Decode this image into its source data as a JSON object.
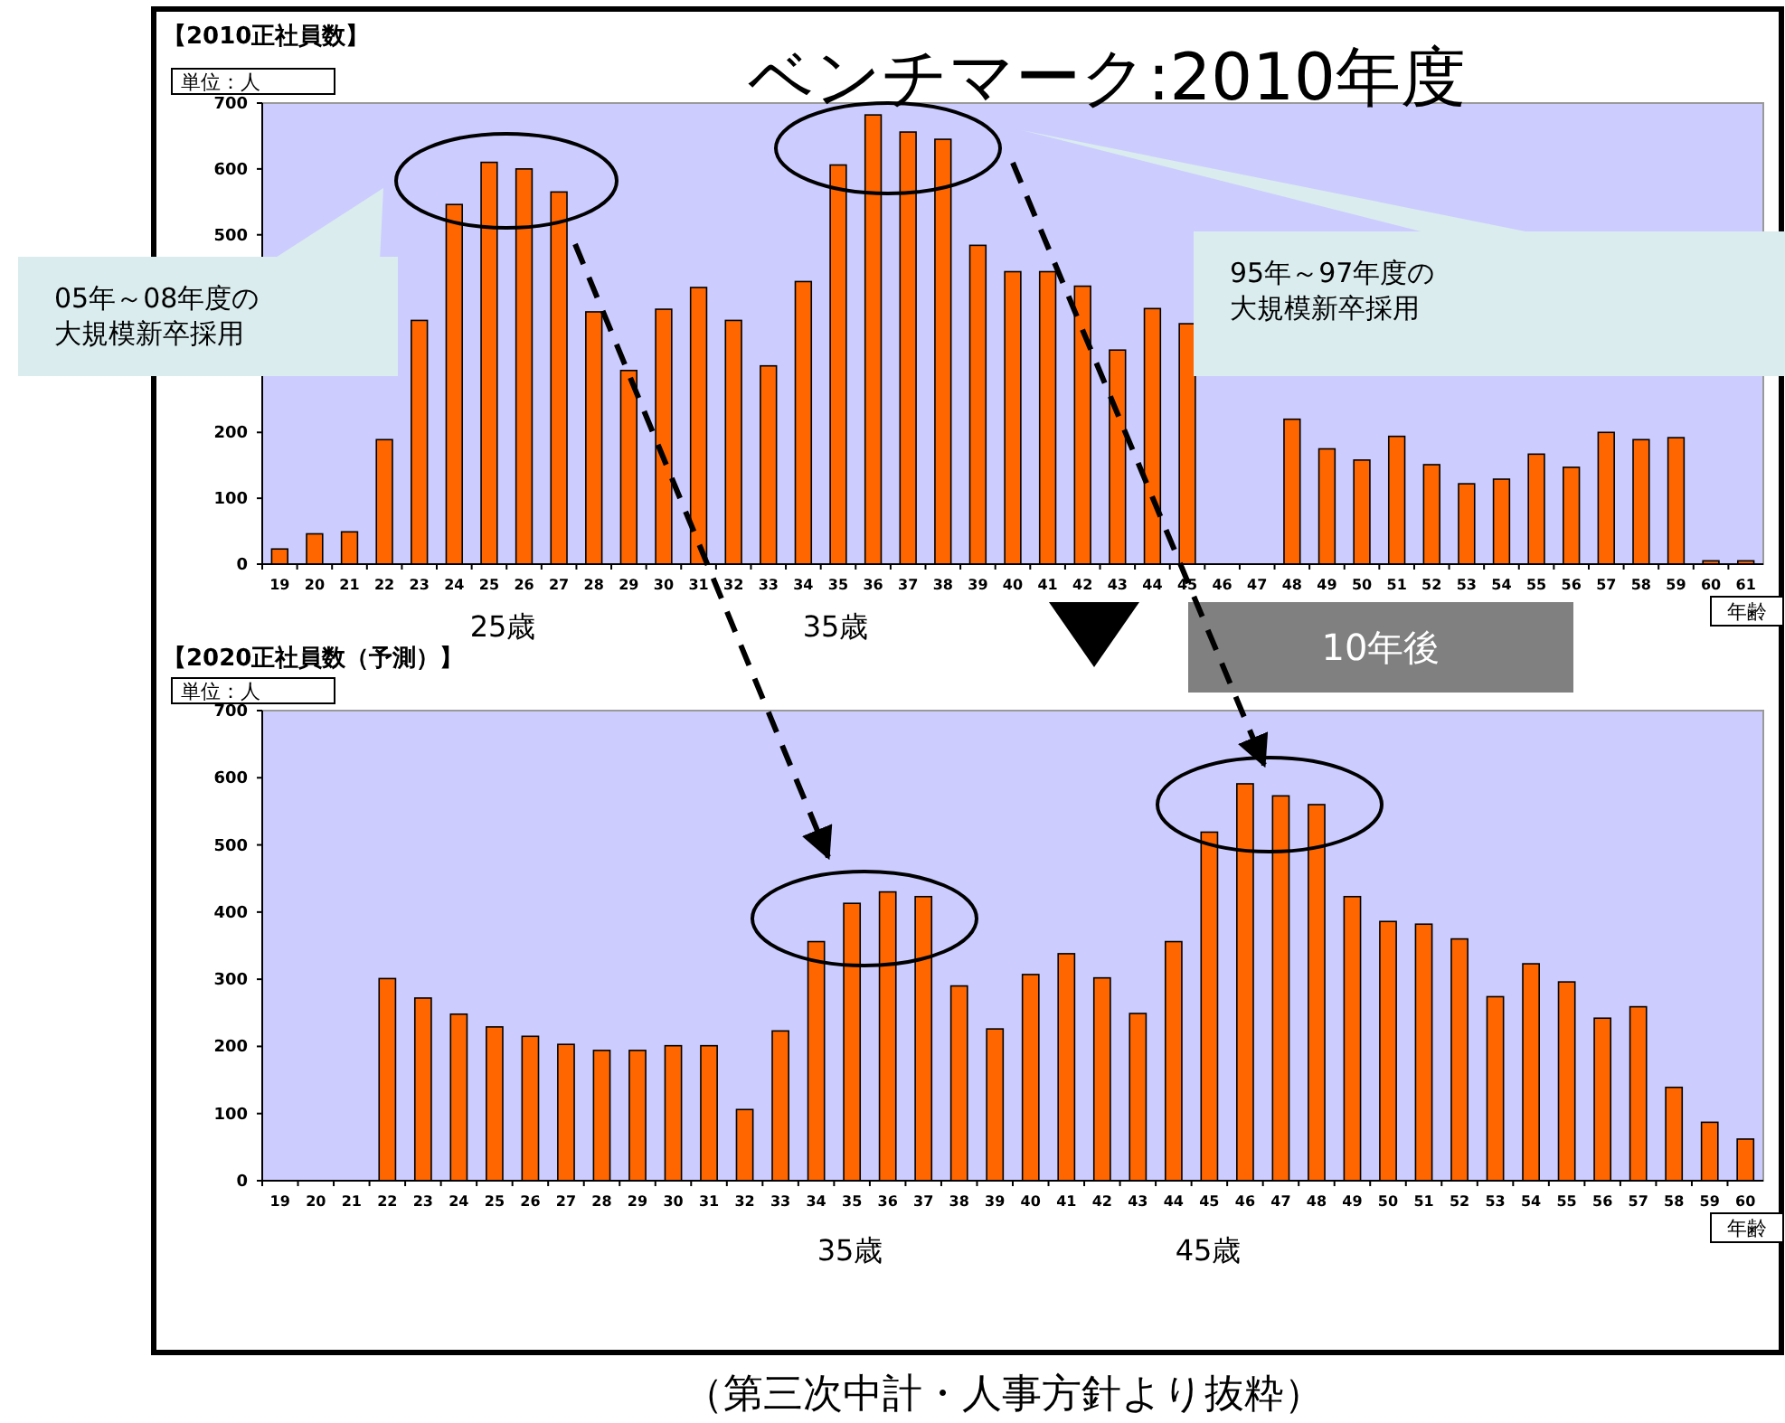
{
  "chart_data": [
    {
      "type": "bar",
      "title": "【2010正社員数】",
      "ylabel": "単位：人",
      "xlabel": "年齢",
      "color": "#ff6600",
      "ylim": [
        0,
        700
      ],
      "yticks": [
        0,
        100,
        200,
        500,
        600,
        700
      ],
      "grid": false,
      "categories": [
        "19",
        "20",
        "21",
        "22",
        "23",
        "24",
        "25",
        "26",
        "27",
        "28",
        "29",
        "30",
        "31",
        "32",
        "33",
        "34",
        "35",
        "36",
        "37",
        "38",
        "39",
        "40",
        "41",
        "42",
        "43",
        "44",
        "45",
        "46",
        "47",
        "48",
        "49",
        "50",
        "51",
        "52",
        "53",
        "54",
        "55",
        "56",
        "57",
        "58",
        "59",
        "60",
        "61"
      ],
      "values": [
        23,
        46,
        49,
        189,
        370,
        546,
        610,
        600,
        565,
        383,
        294,
        387,
        420,
        370,
        301,
        429,
        606,
        682,
        656,
        645,
        484,
        444,
        444,
        422,
        325,
        388,
        365,
        null,
        null,
        220,
        175,
        158,
        194,
        151,
        122,
        129,
        167,
        147,
        200,
        189,
        192,
        5,
        5
      ],
      "annotations": [
        "ベンチマーク:2010年度",
        "05年～08年度の大規模新卒採用",
        "95年～97年度の大規模新卒採用",
        "25歳",
        "35歳",
        "10年後"
      ]
    },
    {
      "type": "bar",
      "title": "【2020正社員数（予測）】",
      "ylabel": "単位：人",
      "xlabel": "年齢",
      "color": "#ff6600",
      "ylim": [
        0,
        700
      ],
      "yticks": [
        0,
        100,
        200,
        300,
        400,
        500,
        600,
        700
      ],
      "grid": false,
      "categories": [
        "19",
        "20",
        "21",
        "22",
        "23",
        "24",
        "25",
        "26",
        "27",
        "28",
        "29",
        "30",
        "31",
        "32",
        "33",
        "34",
        "35",
        "36",
        "37",
        "38",
        "39",
        "40",
        "41",
        "42",
        "43",
        "44",
        "45",
        "46",
        "47",
        "48",
        "49",
        "50",
        "51",
        "52",
        "53",
        "54",
        "55",
        "56",
        "57",
        "58",
        "59",
        "60"
      ],
      "values": [
        0,
        0,
        0,
        301,
        272,
        248,
        229,
        215,
        203,
        194,
        194,
        201,
        201,
        106,
        223,
        356,
        413,
        430,
        423,
        290,
        226,
        307,
        338,
        302,
        249,
        356,
        519,
        591,
        573,
        560,
        423,
        386,
        382,
        360,
        274,
        323,
        296,
        242,
        259,
        139,
        87,
        62
      ],
      "annotations": [
        "35歳",
        "45歳",
        "（第三次中計・人事方針より抜粋）"
      ]
    }
  ]
}
